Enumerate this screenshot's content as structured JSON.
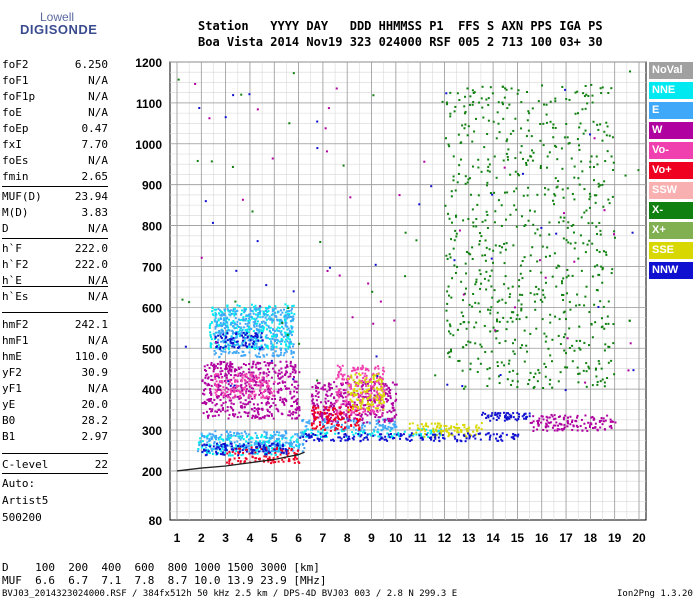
{
  "logo": {
    "top": "Lowell",
    "bottom": "DIGISONDE"
  },
  "header": {
    "line1": "Station   YYYY DAY   DDD HHMMSS P1  FFS S AXN PPS IGA PS",
    "line2": "Boa Vista 2014 Nov19 323 024000 RSF 005 2 713 100 03+ 30"
  },
  "params": [
    {
      "name": "foF2",
      "value": "6.250"
    },
    {
      "name": "foF1",
      "value": "N/A"
    },
    {
      "name": "foF1p",
      "value": "N/A"
    },
    {
      "name": "foE",
      "value": "N/A"
    },
    {
      "name": "foEp",
      "value": "0.47"
    },
    {
      "name": "fxI",
      "value": "7.70"
    },
    {
      "name": "foEs",
      "value": "N/A"
    },
    {
      "name": "fmin",
      "value": "2.65"
    },
    {
      "name": "MUF(D)",
      "value": "23.94"
    },
    {
      "name": "M(D)",
      "value": "3.83"
    },
    {
      "name": "D",
      "value": "N/A"
    },
    {
      "name": "h`F",
      "value": "222.0"
    },
    {
      "name": "h`F2",
      "value": "222.0"
    },
    {
      "name": "h`E",
      "value": "N/A"
    },
    {
      "name": "h`Es",
      "value": "N/A"
    },
    {
      "name": "hmF2",
      "value": "242.1"
    },
    {
      "name": "hmF1",
      "value": "N/A"
    },
    {
      "name": "hmE",
      "value": "110.0"
    },
    {
      "name": "yF2",
      "value": "30.9"
    },
    {
      "name": "yF1",
      "value": "N/A"
    },
    {
      "name": "yE",
      "value": "20.0"
    },
    {
      "name": "B0",
      "value": "28.2"
    },
    {
      "name": "B1",
      "value": "2.97"
    },
    {
      "name": "C-level",
      "value": "22"
    }
  ],
  "auto": {
    "label": "Auto:",
    "artist": "Artist5",
    "version": "500200"
  },
  "legend": [
    {
      "label": "NoVal",
      "color": "#a0a0a0"
    },
    {
      "label": "NNE",
      "color": "#00e8f0"
    },
    {
      "label": "E",
      "color": "#40a8f8"
    },
    {
      "label": "W",
      "color": "#b000a0"
    },
    {
      "label": "Vo-",
      "color": "#f040b0"
    },
    {
      "label": "Vo+",
      "color": "#f00020"
    },
    {
      "label": "SSW",
      "color": "#f8b0b0"
    },
    {
      "label": "X-",
      "color": "#108010"
    },
    {
      "label": "X+",
      "color": "#80b050"
    },
    {
      "label": "SSE",
      "color": "#d8d800"
    },
    {
      "label": "NNW",
      "color": "#1010d0"
    }
  ],
  "footer": {
    "d_line": "D    100  200  400  600  800 1000 1500 3000 [km]",
    "muf_line": "MUF  6.6  6.7  7.1  7.8  8.7 10.0 13.9 23.9 [MHz]",
    "file_line": "BVJ03_2014323024000.RSF / 384fx512h 50 kHz 2.5 km / DPS-4D BVJ03 003 / 2.8 N 299.3 E",
    "version": "Ion2Png 1.3.20"
  },
  "chart_data": {
    "type": "scatter",
    "title": "",
    "xlabel": "",
    "ylabel": "",
    "xlim": [
      1,
      20
    ],
    "ylim": [
      80,
      1200
    ],
    "x_ticks": [
      1,
      2,
      3,
      4,
      5,
      6,
      7,
      8,
      9,
      10,
      11,
      12,
      13,
      14,
      15,
      16,
      17,
      18,
      19,
      20
    ],
    "y_ticks": [
      80,
      200,
      300,
      400,
      500,
      600,
      700,
      800,
      900,
      1000,
      1100,
      1200
    ],
    "grid": true,
    "series": [
      {
        "name": "NNE",
        "color": "#00e8f0",
        "clusters": [
          {
            "x": [
              1.8,
              6.0
            ],
            "y": [
              240,
              290
            ]
          },
          {
            "x": [
              2.3,
              5.8
            ],
            "y": [
              500,
              610
            ]
          },
          {
            "x": [
              6.0,
              12.0
            ],
            "y": [
              285,
              305
            ]
          }
        ]
      },
      {
        "name": "E",
        "color": "#40a8f8",
        "clusters": [
          {
            "x": [
              1.8,
              6.2
            ],
            "y": [
              250,
              300
            ]
          },
          {
            "x": [
              2.5,
              5.8
            ],
            "y": [
              480,
              600
            ]
          },
          {
            "x": [
              6.0,
              10.0
            ],
            "y": [
              300,
              330
            ]
          }
        ]
      },
      {
        "name": "W",
        "color": "#b000a0",
        "clusters": [
          {
            "x": [
              2.0,
              6.0
            ],
            "y": [
              330,
              470
            ]
          },
          {
            "x": [
              6.5,
              10.0
            ],
            "y": [
              320,
              420
            ]
          },
          {
            "x": [
              15.5,
              19.0
            ],
            "y": [
              300,
              340
            ]
          }
        ]
      },
      {
        "name": "Vo-",
        "color": "#f040b0",
        "clusters": [
          {
            "x": [
              7.5,
              9.5
            ],
            "y": [
              340,
              460
            ]
          },
          {
            "x": [
              2.5,
              5.0
            ],
            "y": [
              380,
              440
            ]
          }
        ]
      },
      {
        "name": "Vo+",
        "color": "#f00020",
        "clusters": [
          {
            "x": [
              3.0,
              6.0
            ],
            "y": [
              220,
              260
            ]
          },
          {
            "x": [
              6.5,
              8.5
            ],
            "y": [
              300,
              360
            ]
          }
        ]
      },
      {
        "name": "X-",
        "color": "#108010",
        "clusters": [
          {
            "x": [
              12.0,
              19.0
            ],
            "y": [
              400,
              1150
            ]
          }
        ]
      },
      {
        "name": "SSE",
        "color": "#d8d800",
        "clusters": [
          {
            "x": [
              8.0,
              9.5
            ],
            "y": [
              350,
              440
            ]
          },
          {
            "x": [
              10.5,
              13.5
            ],
            "y": [
              285,
              320
            ]
          }
        ]
      },
      {
        "name": "NNW",
        "color": "#1010d0",
        "clusters": [
          {
            "x": [
              2.0,
              5.5
            ],
            "y": [
              240,
              270
            ]
          },
          {
            "x": [
              6.0,
              15.0
            ],
            "y": [
              275,
              295
            ]
          },
          {
            "x": [
              13.5,
              15.5
            ],
            "y": [
              325,
              345
            ]
          },
          {
            "x": [
              2.5,
              4.5
            ],
            "y": [
              500,
              540
            ]
          }
        ]
      }
    ],
    "trace": {
      "x": [
        1.0,
        2.0,
        3.0,
        4.0,
        5.0,
        5.5,
        6.0,
        6.25
      ],
      "y": [
        200,
        207,
        212,
        220,
        228,
        234,
        240,
        246
      ]
    }
  }
}
